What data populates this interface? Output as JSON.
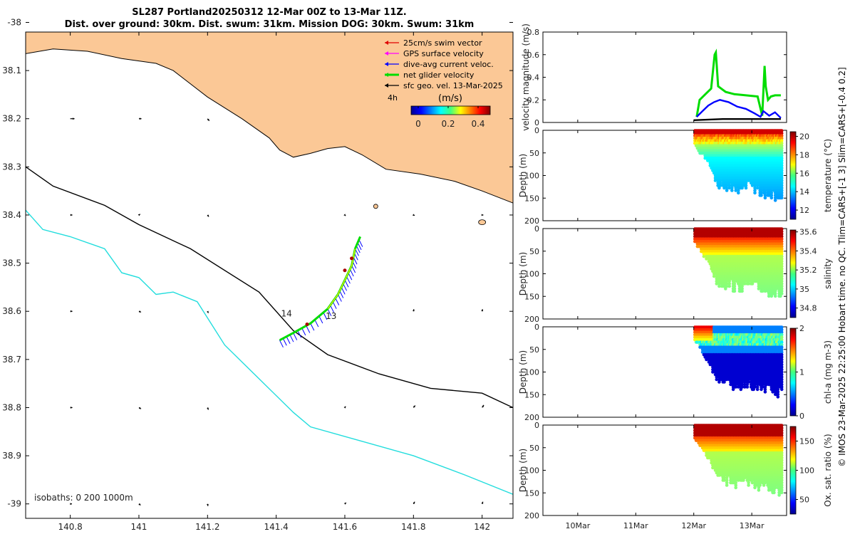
{
  "chart_data": [
    {
      "type": "map",
      "title_line1": "SL287 Portland20250312 12-Mar 00Z to 13-Mar 11Z.",
      "title_line2": "Dist. over ground: 30km. Dist. swum: 31km. Mission DOG: 30km. Swum: 31km",
      "xlim": [
        140.67,
        142.09
      ],
      "ylim": [
        -39.03,
        -38.02
      ],
      "xticks": [
        140.8,
        141,
        141.2,
        141.4,
        141.6,
        141.8,
        142
      ],
      "xtick_labels": [
        "140.8",
        "141",
        "141.2",
        "141.4",
        "141.6",
        "141.8",
        "142"
      ],
      "yticks": [
        -38,
        -38.1,
        -38.2,
        -38.3,
        -38.4,
        -38.5,
        -38.6,
        -38.7,
        -38.8,
        -38.9,
        -39
      ],
      "ytick_labels": [
        "-38",
        "38.1",
        "38.2",
        "38.3",
        "38.4",
        "38.5",
        "38.6",
        "38.7",
        "38.8",
        "38.9",
        "-39"
      ],
      "legend": [
        {
          "label": "25cm/s swim vector",
          "color": "#e00000"
        },
        {
          "label": "GPS surface velocity",
          "color": "#ff00ff"
        },
        {
          "label": "dive-avg current veloc.",
          "color": "#0000ff"
        },
        {
          "label": "net glider velocity",
          "color": "#00dd00"
        },
        {
          "label": "sfc geo. vel. 13-Mar-2025",
          "color": "#000000"
        }
      ],
      "scale_label": "4h",
      "colorbar_unit": "(m/s)",
      "colorbar_ticks": [
        "0",
        "0.2",
        "0.4"
      ],
      "isobaths_label": "isobaths: 0   200  1000m",
      "day_labels": [
        {
          "text": "14",
          "lon": 141.43,
          "lat": -38.605
        },
        {
          "text": "13",
          "lon": 141.56,
          "lat": -38.61
        }
      ],
      "coastline": [
        [
          140.67,
          -38.065
        ],
        [
          140.75,
          -38.055
        ],
        [
          140.85,
          -38.06
        ],
        [
          140.95,
          -38.075
        ],
        [
          141.05,
          -38.085
        ],
        [
          141.1,
          -38.1
        ],
        [
          141.2,
          -38.155
        ],
        [
          141.3,
          -38.2
        ],
        [
          141.38,
          -38.24
        ],
        [
          141.41,
          -38.265
        ],
        [
          141.45,
          -38.28
        ],
        [
          141.5,
          -38.272
        ],
        [
          141.55,
          -38.262
        ],
        [
          141.6,
          -38.258
        ],
        [
          141.65,
          -38.275
        ],
        [
          141.72,
          -38.305
        ],
        [
          141.82,
          -38.315
        ],
        [
          141.92,
          -38.33
        ],
        [
          142.0,
          -38.35
        ],
        [
          142.09,
          -38.375
        ]
      ],
      "isobath_200": [
        [
          140.67,
          -38.3
        ],
        [
          140.75,
          -38.34
        ],
        [
          140.9,
          -38.38
        ],
        [
          141.0,
          -38.42
        ],
        [
          141.15,
          -38.47
        ],
        [
          141.35,
          -38.56
        ],
        [
          141.45,
          -38.64
        ],
        [
          141.55,
          -38.69
        ],
        [
          141.7,
          -38.73
        ],
        [
          141.85,
          -38.76
        ],
        [
          142.0,
          -38.77
        ],
        [
          142.09,
          -38.8
        ]
      ],
      "isobath_1000": [
        [
          140.67,
          -38.39
        ],
        [
          140.72,
          -38.43
        ],
        [
          140.8,
          -38.445
        ],
        [
          140.9,
          -38.47
        ],
        [
          140.95,
          -38.52
        ],
        [
          141.0,
          -38.53
        ],
        [
          141.05,
          -38.565
        ],
        [
          141.1,
          -38.56
        ],
        [
          141.17,
          -38.58
        ],
        [
          141.25,
          -38.67
        ],
        [
          141.35,
          -38.74
        ],
        [
          141.45,
          -38.81
        ],
        [
          141.5,
          -38.84
        ],
        [
          141.65,
          -38.87
        ],
        [
          141.8,
          -38.9
        ],
        [
          141.95,
          -38.94
        ],
        [
          142.09,
          -38.98
        ]
      ],
      "track": [
        [
          141.41,
          -38.66
        ],
        [
          141.45,
          -38.645
        ],
        [
          141.5,
          -38.625
        ],
        [
          141.55,
          -38.595
        ],
        [
          141.58,
          -38.565
        ],
        [
          141.6,
          -38.535
        ],
        [
          141.62,
          -38.505
        ],
        [
          141.63,
          -38.47
        ],
        [
          141.645,
          -38.445
        ]
      ],
      "geo_vectors": [
        [
          140.8,
          -38.2,
          0.1,
          0.0
        ],
        [
          141.0,
          -38.2,
          0.06,
          0.0
        ],
        [
          141.2,
          -38.2,
          0.04,
          -0.05
        ],
        [
          140.8,
          -38.4,
          0.05,
          0.0
        ],
        [
          141.0,
          -38.4,
          0.03,
          0.02
        ],
        [
          141.2,
          -38.4,
          0.03,
          -0.04
        ],
        [
          141.6,
          -38.4,
          0.02,
          -0.02
        ],
        [
          141.8,
          -38.4,
          0.03,
          -0.01
        ],
        [
          142.0,
          -38.4,
          0.03,
          0.0
        ],
        [
          140.8,
          -38.6,
          0.05,
          0.0
        ],
        [
          141.0,
          -38.6,
          0.05,
          -0.02
        ],
        [
          141.2,
          -38.6,
          0.02,
          -0.04
        ],
        [
          141.8,
          -38.6,
          0.01,
          0.05
        ],
        [
          142.0,
          -38.6,
          0.01,
          0.05
        ],
        [
          140.8,
          -38.8,
          0.05,
          0.0
        ],
        [
          141.0,
          -38.8,
          0.05,
          -0.03
        ],
        [
          141.2,
          -38.8,
          0.02,
          -0.05
        ],
        [
          141.6,
          -38.8,
          0.02,
          0.03
        ],
        [
          141.8,
          -38.8,
          0.04,
          0.05
        ],
        [
          142.0,
          -38.8,
          0.04,
          0.06
        ],
        [
          140.8,
          -39.0,
          0.04,
          0.0
        ],
        [
          141.0,
          -39.0,
          0.04,
          -0.03
        ],
        [
          141.2,
          -39.0,
          0.01,
          -0.05
        ],
        [
          141.6,
          -39.0,
          0.03,
          0.03
        ],
        [
          141.8,
          -39.0,
          0.03,
          0.05
        ],
        [
          142.0,
          -39.0,
          0.02,
          0.05
        ]
      ]
    },
    {
      "type": "line",
      "ylabel": "velocity magnitude (m/s)",
      "xlim": [
        9.4,
        13.6
      ],
      "ylim": [
        0,
        0.8
      ],
      "yticks": [
        0,
        0.2,
        0.4,
        0.6,
        0.8
      ],
      "ytick_labels": [
        "0",
        "0.2",
        "0.4",
        "0.6",
        "0.8"
      ],
      "series": [
        {
          "name": "net glider velocity",
          "color": "#00dd00",
          "x": [
            12.05,
            12.1,
            12.2,
            12.3,
            12.36,
            12.38,
            12.42,
            12.55,
            12.7,
            12.9,
            13.1,
            13.18,
            13.22,
            13.24,
            13.28,
            13.33,
            13.4,
            13.5
          ],
          "y": [
            0.05,
            0.2,
            0.25,
            0.3,
            0.6,
            0.62,
            0.32,
            0.27,
            0.25,
            0.24,
            0.23,
            0.06,
            0.5,
            0.32,
            0.2,
            0.23,
            0.24,
            0.24
          ]
        },
        {
          "name": "dive-avg current veloc.",
          "color": "#0000ff",
          "x": [
            12.05,
            12.15,
            12.25,
            12.35,
            12.45,
            12.6,
            12.75,
            12.9,
            13.05,
            13.15,
            13.2,
            13.3,
            13.4,
            13.5
          ],
          "y": [
            0.05,
            0.1,
            0.15,
            0.18,
            0.2,
            0.18,
            0.14,
            0.12,
            0.08,
            0.05,
            0.1,
            0.06,
            0.09,
            0.04
          ]
        },
        {
          "name": "sfc geo. vel.",
          "color": "#000000",
          "x": [
            12.0,
            12.5,
            13.0,
            13.5
          ],
          "y": [
            0.02,
            0.03,
            0.03,
            0.03
          ]
        }
      ]
    },
    {
      "type": "scatter",
      "ylabel": "Depth (m)",
      "clabel": "temperature (°C)",
      "ylim": [
        0,
        200
      ],
      "yticks": [
        0,
        50,
        100,
        150,
        200
      ],
      "ytick_labels": [
        "0",
        "50",
        "100",
        "150",
        "200"
      ],
      "cmin": 11,
      "cmax": 20.5,
      "colorbar_ticks": [
        12,
        14,
        16,
        18,
        20
      ],
      "colorbar_tick_labels": [
        "12",
        "14",
        "16",
        "18",
        "20"
      ]
    },
    {
      "type": "scatter",
      "ylabel": "Depth (m)",
      "clabel": "salinity",
      "ylim": [
        0,
        200
      ],
      "yticks": [
        0,
        50,
        100,
        150,
        200
      ],
      "ytick_labels": [
        "0",
        "50",
        "100",
        "150",
        "200"
      ],
      "cmin": 34.7,
      "cmax": 35.62,
      "colorbar_ticks": [
        34.8,
        35,
        35.2,
        35.4,
        35.6
      ],
      "colorbar_tick_labels": [
        "34.8",
        "35",
        "35.2",
        "35.4",
        "35.6"
      ]
    },
    {
      "type": "scatter",
      "ylabel": "Depth (m)",
      "clabel": "chl-a (mg m-3)",
      "ylim": [
        0,
        200
      ],
      "yticks": [
        0,
        50,
        100,
        150,
        200
      ],
      "ytick_labels": [
        "0",
        "50",
        "100",
        "150",
        "200"
      ],
      "cmin": 0,
      "cmax": 2,
      "colorbar_ticks": [
        0,
        1,
        2
      ],
      "colorbar_tick_labels": [
        "0",
        "1",
        "2"
      ]
    },
    {
      "type": "scatter",
      "ylabel": "Depth (m)",
      "clabel": "Ox. sat. ratio (%)",
      "ylim": [
        0,
        200
      ],
      "yticks": [
        0,
        50,
        100,
        150,
        200
      ],
      "ytick_labels": [
        "0",
        "50",
        "100",
        "150",
        "200"
      ],
      "cmin": 25,
      "cmax": 175,
      "colorbar_ticks": [
        50,
        100,
        150
      ],
      "colorbar_tick_labels": [
        "50",
        "100",
        "150"
      ],
      "xticks": [
        10,
        11,
        12,
        13
      ],
      "xtick_labels": [
        "10Mar",
        "11Mar",
        "12Mar",
        "13Mar"
      ]
    }
  ],
  "footer": {
    "side_note": "© IMOS 23-Mar-2025 22:25:00 Hobart time. no QC. Tlim=CARS+[-1 3] Slim=CARS+[-0.4 0.2]"
  },
  "colors": {
    "land": "#fbc896",
    "isobath_200": "#000000",
    "isobath_1000": "#22dddd"
  }
}
